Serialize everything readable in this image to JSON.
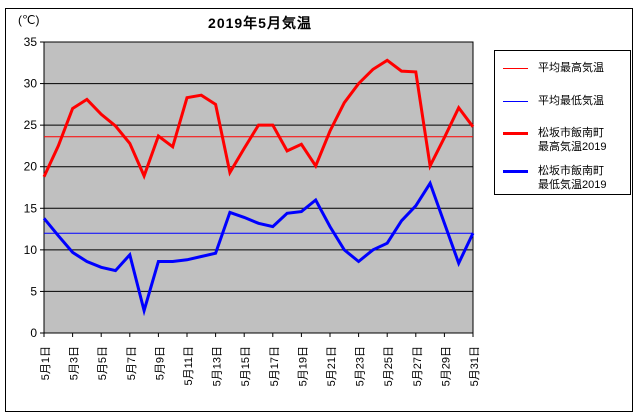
{
  "title": "2019年5月気温",
  "y_axis_unit": "(℃)",
  "legend": {
    "items": [
      {
        "label": "平均最高気温",
        "color": "#ff0000",
        "thickness": 1
      },
      {
        "label": "平均最低気温",
        "color": "#0000ff",
        "thickness": 1
      },
      {
        "label": "松坂市飯南町\n最高気温2019",
        "color": "#ff0000",
        "thickness": 3
      },
      {
        "label": "松坂市飯南町\n最低気温2019",
        "color": "#0000ff",
        "thickness": 3
      }
    ]
  },
  "chart_data": {
    "type": "line",
    "title": "2019年5月気温",
    "ylabel": "(℃)",
    "ylim": [
      0,
      35
    ],
    "ytick_interval": 5,
    "ytick_labels": [
      "0",
      "5",
      "10",
      "15",
      "20",
      "25",
      "30",
      "35"
    ],
    "days": 31,
    "x_tick_days": [
      1,
      3,
      5,
      7,
      9,
      11,
      13,
      15,
      17,
      19,
      21,
      23,
      25,
      27,
      29,
      31
    ],
    "x_tick_labels": [
      "5月1日",
      "5月3日",
      "5月5日",
      "5月7日",
      "5月9日",
      "5月11日",
      "5月13日",
      "5月15日",
      "5月17日",
      "5月19日",
      "5月21日",
      "5月23日",
      "5月25日",
      "5月27日",
      "5月29日",
      "5月31日"
    ],
    "plot_bg": "#c0c0c0",
    "grid_color": "#000000",
    "legend_position": "right",
    "series": [
      {
        "name": "平均最高気温",
        "kind": "constant",
        "value": 23.6,
        "color": "#ff0000",
        "width": 1
      },
      {
        "name": "平均最低気温",
        "kind": "constant",
        "value": 12.0,
        "color": "#0000ff",
        "width": 1
      },
      {
        "name": "松坂市飯南町 最高気温2019",
        "kind": "daily",
        "color": "#ff0000",
        "width": 3,
        "values": [
          18.8,
          22.5,
          27.0,
          28.1,
          26.3,
          24.9,
          22.8,
          18.9,
          23.7,
          22.4,
          28.3,
          28.6,
          27.5,
          19.3,
          22.2,
          25.0,
          25.0,
          21.9,
          22.7,
          20.1,
          24.3,
          27.7,
          30.0,
          31.7,
          32.8,
          31.5,
          31.4,
          20.1,
          23.5,
          27.1,
          24.8
        ]
      },
      {
        "name": "松坂市飯南町 最低気温2019",
        "kind": "daily",
        "color": "#0000ff",
        "width": 3,
        "values": [
          13.8,
          11.7,
          9.7,
          8.6,
          7.9,
          7.5,
          9.4,
          2.7,
          8.6,
          8.6,
          8.8,
          9.2,
          9.6,
          14.5,
          13.9,
          13.2,
          12.8,
          14.4,
          14.6,
          16.0,
          12.8,
          10.0,
          8.6,
          10.0,
          10.8,
          13.5,
          15.3,
          18.0,
          13.2,
          8.4,
          12.0
        ]
      }
    ]
  }
}
